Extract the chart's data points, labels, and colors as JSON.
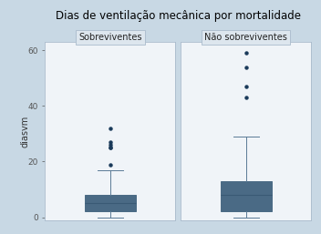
{
  "title": "Dias de ventilação mecânica por mortalidade",
  "ylabel": "diasvm",
  "panel_labels": [
    "Sobreviventes",
    "Não sobreviventes"
  ],
  "ylim": [
    -1,
    63
  ],
  "yticks": [
    0,
    20,
    40,
    60
  ],
  "box_color": "#7d9db5",
  "box_edgecolor": "#4a6a85",
  "whisker_color": "#5a7a95",
  "median_color": "#3a5a75",
  "flier_color": "#1a3a5a",
  "plot_bg": "#f0f4f8",
  "outer_bg": "#c8d8e4",
  "panel_header_bg": "#dde6ee",
  "spine_color": "#aabbcc",
  "group1": {
    "q1": 2.0,
    "median": 5.0,
    "q3": 8.0,
    "whislo": 0.0,
    "whishi": 17.0,
    "fliers": [
      19,
      25,
      25,
      26,
      27,
      32
    ]
  },
  "group2": {
    "q1": 2.0,
    "median": 8.0,
    "q3": 13.0,
    "whislo": 0.0,
    "whishi": 29.0,
    "fliers": [
      43,
      47,
      54,
      59
    ]
  }
}
